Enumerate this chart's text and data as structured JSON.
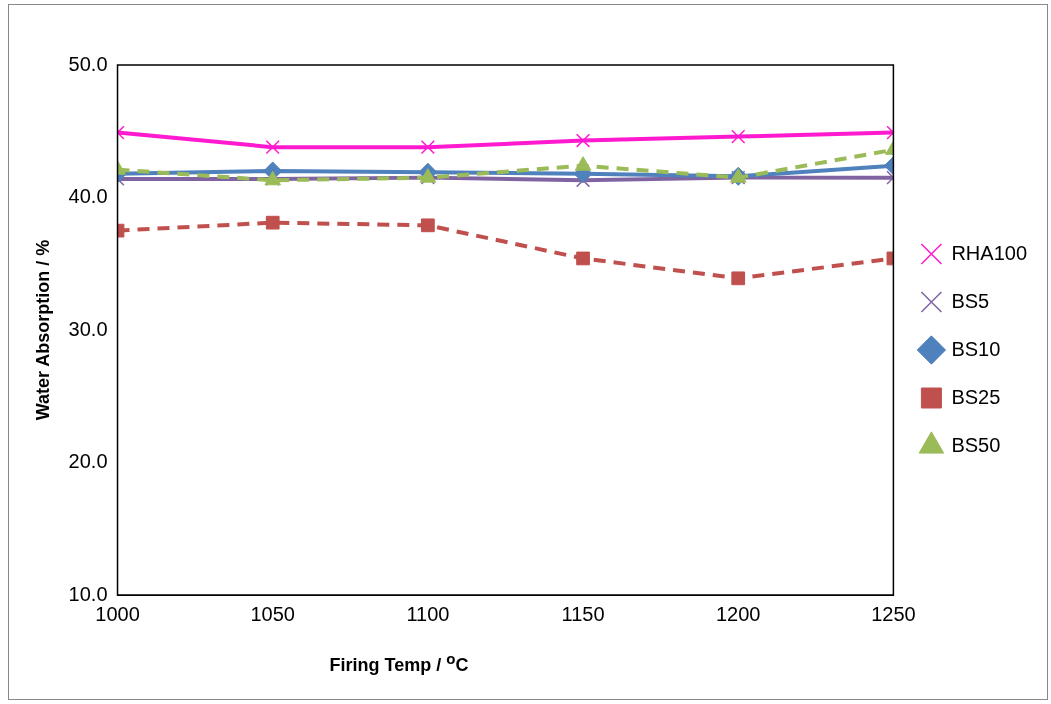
{
  "chart_data": {
    "type": "line",
    "xlabel": "Firing Temp / $^{o}$C",
    "ylabel": "Water Absorption / %",
    "x": [
      1000,
      1050,
      1100,
      1150,
      1200,
      1250
    ],
    "xlim": [
      1000,
      1250
    ],
    "xticks": [
      1000,
      1050,
      1100,
      1150,
      1200,
      1250
    ],
    "ylim": [
      10,
      50
    ],
    "yticks": [
      {
        "value": 10,
        "label": "10.0"
      },
      {
        "value": 20,
        "label": "20.0"
      },
      {
        "value": 30,
        "label": "30.0"
      },
      {
        "value": 40,
        "label": "40.0"
      },
      {
        "value": 50,
        "label": "50.0"
      }
    ],
    "grid": false,
    "legend": "right",
    "series": [
      {
        "name": "RHA100",
        "color": "#ff1ad0",
        "marker": "cross",
        "line_style": "solid",
        "values": [
          44.9,
          43.8,
          43.8,
          44.3,
          44.6,
          44.9
        ]
      },
      {
        "name": "BS5",
        "color": "#8064a2",
        "marker": "cross",
        "line_style": "solid",
        "values": [
          41.4,
          41.4,
          41.5,
          41.3,
          41.5,
          41.5
        ]
      },
      {
        "name": "BS10",
        "color": "#4f81bd",
        "marker": "diamond",
        "line_style": "solid",
        "values": [
          41.8,
          42.0,
          41.9,
          41.8,
          41.6,
          42.4
        ]
      },
      {
        "name": "BS25",
        "color": "#c0504d",
        "marker": "square",
        "line_style": "dashed",
        "values": [
          37.5,
          38.1,
          37.9,
          35.4,
          33.9,
          35.4
        ]
      },
      {
        "name": "BS50",
        "color": "#9bbb59",
        "marker": "triangle",
        "line_style": "dashed",
        "values": [
          42.1,
          41.3,
          41.5,
          42.4,
          41.5,
          43.6
        ]
      }
    ]
  }
}
